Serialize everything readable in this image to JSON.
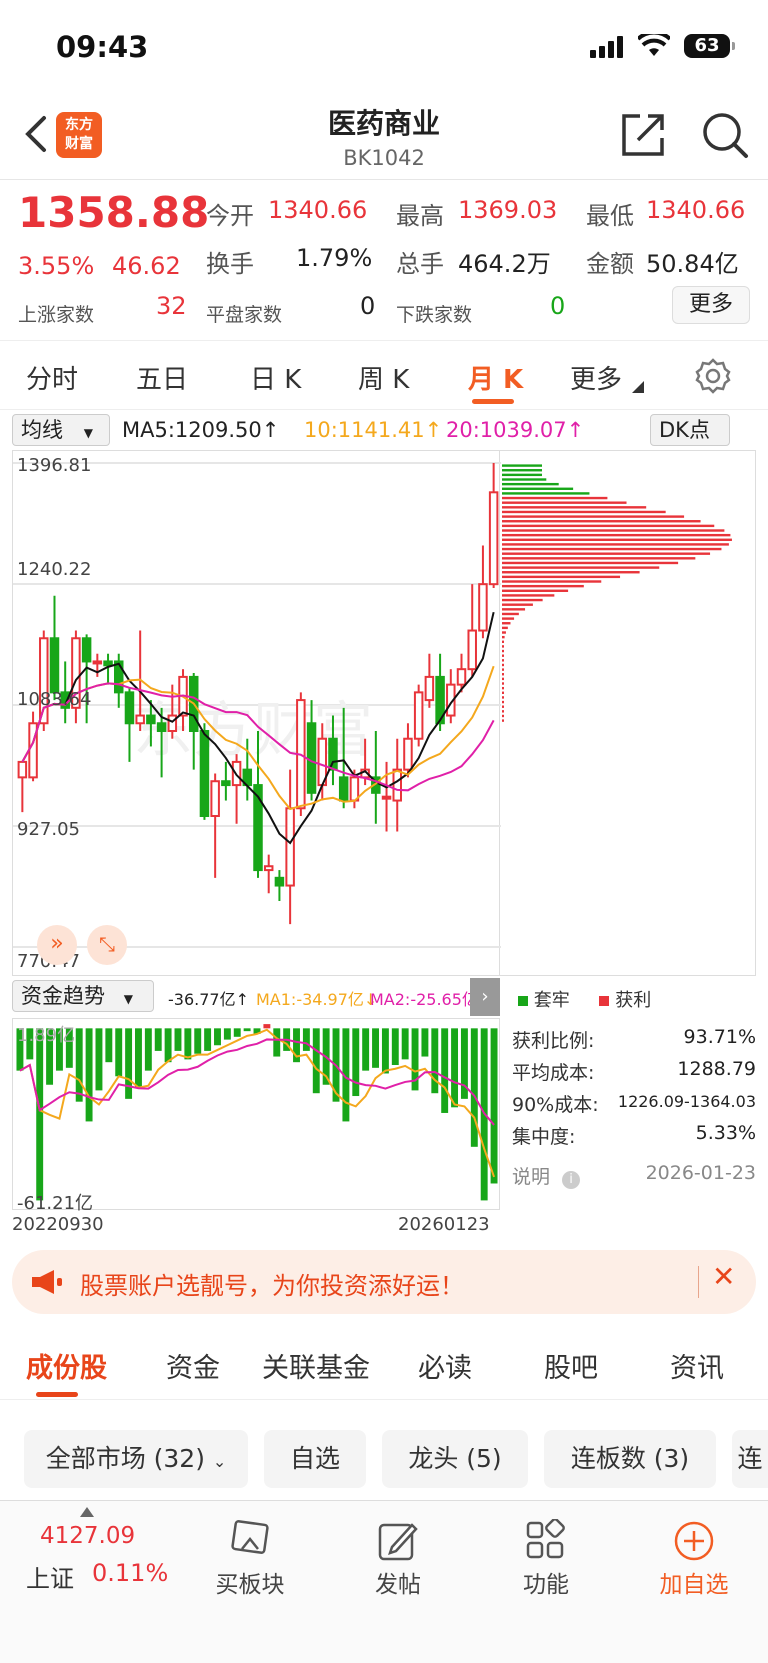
{
  "status": {
    "time": "09:43",
    "battery": "63"
  },
  "header": {
    "title": "医药商业",
    "code": "BK1042",
    "logo_line1": "东方",
    "logo_line2": "财富"
  },
  "quote": {
    "price": "1358.88",
    "change_pct": "3.55%",
    "change": "46.62",
    "open_label": "今开",
    "open": "1340.66",
    "high_label": "最高",
    "high": "1369.03",
    "low_label": "最低",
    "low": "1340.66",
    "turnover_label": "换手",
    "turnover": "1.79%",
    "volume_label": "总手",
    "volume": "464.2万",
    "amount_label": "金额",
    "amount": "50.84亿",
    "up_label": "上涨家数",
    "up": "32",
    "flat_label": "平盘家数",
    "flat": "0",
    "down_label": "下跌家数",
    "down": "0",
    "more": "更多"
  },
  "ktabs": [
    "分时",
    "五日",
    "日 K",
    "周 K",
    "月 K",
    "更多"
  ],
  "ma": {
    "selector": "均线",
    "ma5": "MA5:1209.50↑",
    "ma10": "10:1141.41↑",
    "ma20": "20:1039.07↑",
    "dk": "DK点"
  },
  "chart_data": {
    "type": "candlestick",
    "axis_labels": [
      "1396.81",
      "1240.22",
      "1083.64",
      "927.05",
      "770.47"
    ],
    "ylim": [
      770.47,
      1396.81
    ],
    "watermark": "东方财富",
    "candles": [
      [
        990,
        1010,
        1000,
        945
      ],
      [
        990,
        1060,
        1075,
        985
      ],
      [
        1060,
        1170,
        1180,
        1050
      ],
      [
        1170,
        1100,
        1225,
        1090
      ],
      [
        1100,
        1080,
        1140,
        1060
      ],
      [
        1080,
        1170,
        1180,
        1060
      ],
      [
        1170,
        1140,
        1175,
        1060
      ],
      [
        1140,
        1140,
        1150,
        1120
      ],
      [
        1140,
        1135,
        1150,
        1110
      ],
      [
        1140,
        1100,
        1150,
        1080
      ],
      [
        1100,
        1060,
        1105,
        1010
      ],
      [
        1060,
        1070,
        1180,
        1050
      ],
      [
        1070,
        1060,
        1090,
        1030
      ],
      [
        1060,
        1050,
        1080,
        990
      ],
      [
        1050,
        1070,
        1110,
        1040
      ],
      [
        1070,
        1120,
        1130,
        1050
      ],
      [
        1120,
        1050,
        1125,
        1000
      ],
      [
        1050,
        940,
        1060,
        935
      ],
      [
        940,
        985,
        995,
        860
      ],
      [
        985,
        980,
        1010,
        960
      ],
      [
        980,
        1010,
        1020,
        930
      ],
      [
        1000,
        980,
        1040,
        960
      ],
      [
        980,
        870,
        1050,
        860
      ],
      [
        870,
        875,
        890,
        840
      ],
      [
        860,
        850,
        870,
        830
      ],
      [
        850,
        950,
        1000,
        800
      ],
      [
        950,
        1090,
        1100,
        940
      ],
      [
        1060,
        970,
        1090,
        960
      ],
      [
        980,
        1040,
        1060,
        960
      ],
      [
        1040,
        1000,
        1070,
        980
      ],
      [
        990,
        960,
        1080,
        950
      ],
      [
        960,
        990,
        1000,
        950
      ],
      [
        990,
        1000,
        1040,
        980
      ],
      [
        990,
        970,
        1050,
        930
      ],
      [
        965,
        965,
        1010,
        920
      ],
      [
        960,
        1000,
        1040,
        920
      ],
      [
        1000,
        1040,
        1060,
        990
      ],
      [
        1040,
        1100,
        1110,
        1030
      ],
      [
        1090,
        1120,
        1150,
        1080
      ],
      [
        1120,
        1060,
        1150,
        1050
      ],
      [
        1070,
        1110,
        1130,
        1060
      ],
      [
        1110,
        1130,
        1150,
        1100
      ],
      [
        1130,
        1180,
        1240,
        1120
      ],
      [
        1180,
        1240,
        1290,
        1170
      ],
      [
        1240,
        1358.88,
        1396.81,
        1235
      ]
    ]
  },
  "chips_legend": {
    "trapped": "套牢",
    "profit": "获利"
  },
  "chips_stats": [
    {
      "label": "获利比例:",
      "value": "93.71%"
    },
    {
      "label": "平均成本:",
      "value": "1288.79"
    },
    {
      "label": "90%成本:",
      "value": "1226.09-1364.03"
    },
    {
      "label": "集中度:",
      "value": "5.33%"
    }
  ],
  "chips_note": {
    "label": "说明",
    "date": "2026-01-23"
  },
  "flow": {
    "selector": "资金趋势",
    "value": "-36.77亿↑",
    "ma1": "MA1:-34.97亿↓",
    "ma2": "MA2:-25.65亿↓",
    "top_label": "1.89亿",
    "bottom_label": "-61.21亿",
    "date_start": "20220930",
    "date_end": "20260123",
    "chart_data": {
      "type": "bar",
      "ylim": [
        -61.21,
        1.89
      ],
      "values": [
        -15,
        -11,
        -61,
        -20,
        -15,
        -14,
        -26,
        -33,
        -22,
        -12,
        -17,
        -25,
        -21,
        -15,
        -8,
        -12,
        -8,
        -11,
        -9,
        -8,
        -6,
        -4,
        -3,
        -1,
        -2,
        1.5,
        -10,
        -8,
        -12,
        -8,
        -23,
        -20,
        -26,
        -33,
        -24,
        -15,
        -14,
        -16,
        -13,
        -11,
        -22,
        -10,
        -23,
        -30,
        -28,
        -25,
        -42,
        -61,
        -55
      ]
    }
  },
  "banner": {
    "text": "股票账户选靓号，为你投资添好运！"
  },
  "section_tabs": [
    "成份股",
    "资金",
    "关联基金",
    "必读",
    "股吧",
    "资讯"
  ],
  "chips": [
    "全部市场 (32)",
    "自选",
    "龙头 (5)",
    "连板数 (3)",
    "连"
  ],
  "bottom": {
    "index_value": "4127.09",
    "index_name": "上证",
    "index_change": "0.11%",
    "buy_sector": "买板块",
    "post": "发帖",
    "features": "功能",
    "add_watch": "加自选"
  }
}
